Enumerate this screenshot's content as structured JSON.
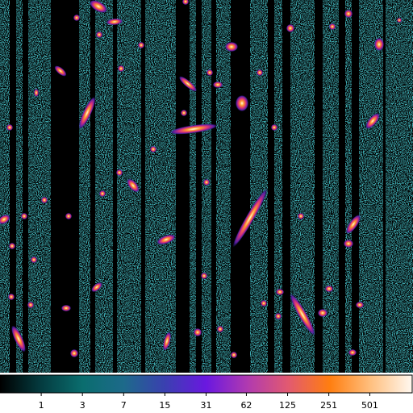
{
  "chart_data": {
    "type": "image",
    "colorbar": {
      "scale": "log",
      "xlim": [
        0,
        1023
      ],
      "xticks": [
        1,
        3,
        7,
        15,
        31,
        62,
        125,
        251,
        501
      ]
    }
  }
}
